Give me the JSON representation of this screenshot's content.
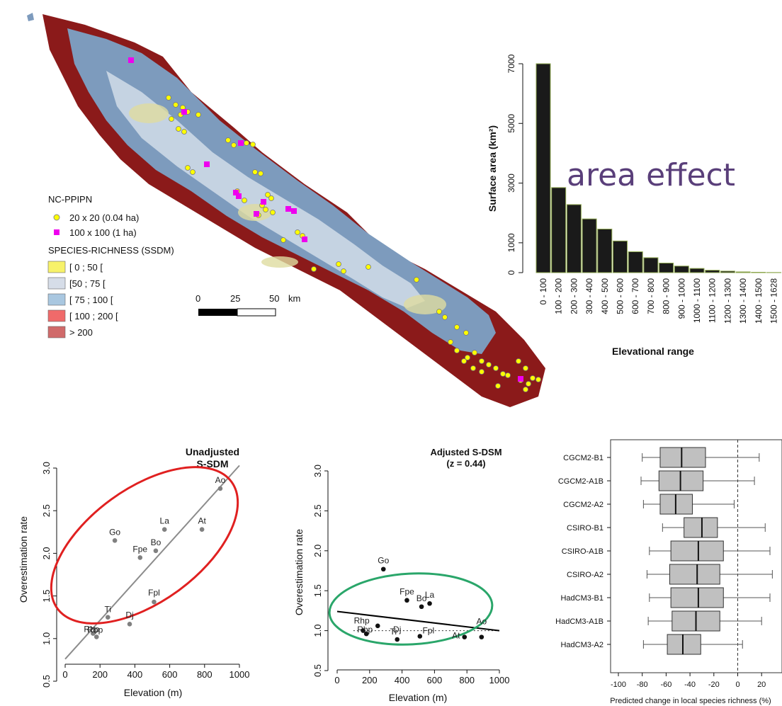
{
  "map_panel": {
    "legend": {
      "plots_title": "NC-PPIPN",
      "plot_small_label": "20 x 20 (0.04 ha)",
      "plot_large_label": "100 x 100 (1 ha)",
      "richness_title": "SPECIES-RICHNESS (SSDM)",
      "richness_classes": [
        {
          "label": "[ 0 ; 50 [",
          "color": "#f7f26a"
        },
        {
          "label": "[50 ; 75 [",
          "color": "#d6dde8"
        },
        {
          "label": "[ 75 ; 100 [",
          "color": "#a9c7e0"
        },
        {
          "label": "[ 100 ; 200 [",
          "color": "#f06a6a"
        },
        {
          "label": "> 200",
          "color": "#d06a6a"
        }
      ],
      "plot_small_color": "#ffff00",
      "plot_large_color": "#ee00ee"
    },
    "scalebar": {
      "ticks": [
        "0",
        "25",
        "50"
      ],
      "unit": "km"
    }
  },
  "annotation": {
    "text": "area effect",
    "color": "#5a3f7a"
  },
  "chart_data": [
    {
      "type": "bar",
      "title": "",
      "xlabel": "Elevational range",
      "ylabel": "Surface area (km²)",
      "categories": [
        "0 - 100",
        "100 - 200",
        "200 - 300",
        "300 - 400",
        "400 - 500",
        "500 - 600",
        "600 - 700",
        "700 - 800",
        "800 - 900",
        "900 - 1000",
        "1000 - 1100",
        "1100 - 1200",
        "1200 - 1300",
        "1300 - 1400",
        "1400 - 1500",
        "1500 - 1628"
      ],
      "values": [
        7000,
        2850,
        2280,
        1800,
        1460,
        1060,
        700,
        500,
        320,
        220,
        140,
        80,
        50,
        25,
        12,
        5
      ],
      "yticks": [
        "0",
        "1000",
        "3000",
        "5000",
        "7000"
      ],
      "ylim": [
        0,
        7000
      ],
      "bar_color": "#1a1a1a",
      "bar_edge": "#8fa850"
    },
    {
      "type": "scatter",
      "title": "Unadjusted",
      "subtitle": "S-SDM",
      "xlabel": "Elevation (m)",
      "ylabel": "Overestimation rate",
      "xlim": [
        0,
        1000
      ],
      "ylim": [
        0.5,
        3.0
      ],
      "xticks": [
        "0",
        "200",
        "400",
        "600",
        "800",
        "1000"
      ],
      "yticks": [
        "0.5",
        "1.0",
        "1.5",
        "2.0",
        "2.5",
        "3.0"
      ],
      "points": [
        {
          "label": "Ao",
          "x": 890,
          "y": 2.76
        },
        {
          "label": "Go",
          "x": 285,
          "y": 2.15
        },
        {
          "label": "La",
          "x": 570,
          "y": 2.28
        },
        {
          "label": "At",
          "x": 785,
          "y": 2.28
        },
        {
          "label": "Bo",
          "x": 520,
          "y": 2.03
        },
        {
          "label": "Fpe",
          "x": 430,
          "y": 1.95
        },
        {
          "label": "Fpl",
          "x": 510,
          "y": 1.43
        },
        {
          "label": "Ti",
          "x": 245,
          "y": 1.25
        },
        {
          "label": "Dj",
          "x": 370,
          "y": 1.17
        },
        {
          "label": "Rhp",
          "x": 160,
          "y": 1.06
        },
        {
          "label": "Rbp",
          "x": 180,
          "y": 1.02
        }
      ],
      "trend": {
        "intercept": 0.76,
        "slope": 0.00227
      },
      "ellipse_color": "#e02020",
      "point_color": "#808080"
    },
    {
      "type": "scatter",
      "title": "Adjusted S-DSM",
      "subtitle": "(z = 0.44)",
      "xlabel": "Elevation (m)",
      "ylabel": "Overestimation rate",
      "xlim": [
        0,
        1000
      ],
      "ylim": [
        0.5,
        3.0
      ],
      "xticks": [
        "0",
        "200",
        "400",
        "600",
        "800",
        "1000"
      ],
      "yticks": [
        "0.5",
        "1.0",
        "1.5",
        "2.0",
        "2.5",
        "3.0"
      ],
      "points": [
        {
          "label": "Go",
          "x": 285,
          "y": 1.77
        },
        {
          "label": "Fpe",
          "x": 430,
          "y": 1.38
        },
        {
          "label": "Bo",
          "x": 520,
          "y": 1.3
        },
        {
          "label": "La",
          "x": 570,
          "y": 1.34
        },
        {
          "label": "Ao",
          "x": 890,
          "y": 0.92
        },
        {
          "label": "Rhp",
          "x": 160,
          "y": 1.0
        },
        {
          "label": "Rbp",
          "x": 180,
          "y": 0.96
        },
        {
          "label": "Ti",
          "x": 250,
          "y": 1.06
        },
        {
          "label": "Dj",
          "x": 370,
          "y": 0.89
        },
        {
          "label": "Fpl",
          "x": 510,
          "y": 0.93
        },
        {
          "label": "At",
          "x": 785,
          "y": 0.92
        }
      ],
      "trend": {
        "intercept": 1.24,
        "slope": -0.00024
      },
      "reference_y": 1.0,
      "ellipse_color": "#2aa66a",
      "point_color": "#111111"
    },
    {
      "type": "box",
      "title": "",
      "xlabel": "Predicted change in local species richness (%)",
      "xlim": [
        -105,
        35
      ],
      "xticks": [
        "-100",
        "-80",
        "-60",
        "-40",
        "-20",
        "0",
        "20"
      ],
      "reference_x": 0,
      "categories": [
        "CGCM2-B1",
        "CGCM2-A1B",
        "CGCM2-A2",
        "CSIRO-B1",
        "CSIRO-A1B",
        "CSIRO-A2",
        "HadCM3-B1",
        "HadCM3-A1B",
        "HadCM3-A2"
      ],
      "boxes": [
        {
          "whisker_low": -80,
          "q1": -65,
          "median": -47,
          "q3": -27,
          "whisker_high": 18
        },
        {
          "whisker_low": -81,
          "q1": -66,
          "median": -48,
          "q3": -29,
          "whisker_high": 14
        },
        {
          "whisker_low": -79,
          "q1": -65,
          "median": -52,
          "q3": -38,
          "whisker_high": -3
        },
        {
          "whisker_low": -63,
          "q1": -45,
          "median": -30,
          "q3": -17,
          "whisker_high": 23
        },
        {
          "whisker_low": -74,
          "q1": -56,
          "median": -33,
          "q3": -12,
          "whisker_high": 27
        },
        {
          "whisker_low": -76,
          "q1": -57,
          "median": -34,
          "q3": -15,
          "whisker_high": 29
        },
        {
          "whisker_low": -74,
          "q1": -56,
          "median": -33,
          "q3": -12,
          "whisker_high": 27
        },
        {
          "whisker_low": -75,
          "q1": -55,
          "median": -35,
          "q3": -15,
          "whisker_high": 20
        },
        {
          "whisker_low": -79,
          "q1": -59,
          "median": -46,
          "q3": -31,
          "whisker_high": 4
        }
      ],
      "box_color": "#c0c0c0"
    }
  ]
}
